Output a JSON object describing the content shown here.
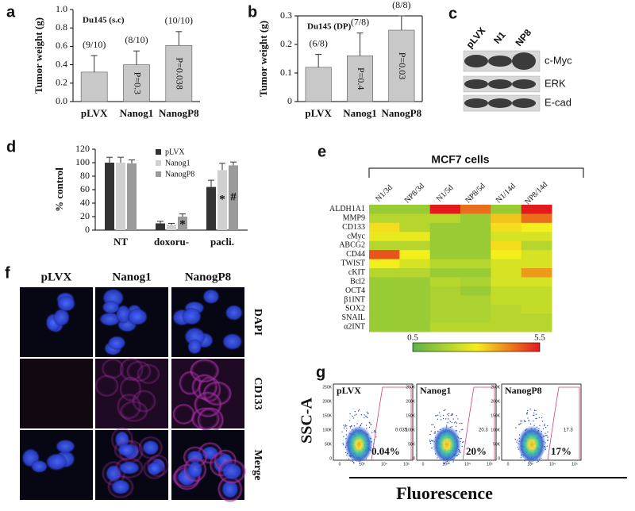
{
  "chart_data": [
    {
      "type": "bar",
      "panel": "a",
      "title": "Du145 (s.c)",
      "y_label": "Tumor weight (g)",
      "categories": [
        "pLVX",
        "Nanog1",
        "NanogP8"
      ],
      "values": [
        0.32,
        0.4,
        0.61
      ],
      "errors": [
        0.18,
        0.15,
        0.15
      ],
      "color": "#c8c8c8",
      "counts": [
        "(9/10)",
        "(8/10)",
        "(10/10)"
      ],
      "p_values": [
        null,
        "P=0.3",
        "P=0.038"
      ],
      "ylim": [
        0,
        1
      ],
      "yticks": [
        {
          "value": 0,
          "label": "0.0"
        },
        0.2,
        0.4,
        0.6,
        0.8,
        {
          "value": 1,
          "label": "1.0"
        }
      ]
    },
    {
      "type": "bar",
      "panel": "b",
      "title": "Du145 (DP)",
      "y_label": "Tumor weight (g)",
      "categories": [
        "pLVX",
        "Nanog1",
        "NanogP8"
      ],
      "values": [
        0.12,
        0.16,
        0.25
      ],
      "errors": [
        0.045,
        0.08,
        0.05
      ],
      "color": "#c8c8c8",
      "counts": [
        "(6/8)",
        "(7/8)",
        "(8/8)"
      ],
      "p_values": [
        null,
        "P=0.4",
        "P=0.03"
      ],
      "ylim": [
        0,
        0.3
      ],
      "yticks": [
        0,
        0.1,
        0.2,
        0.3
      ]
    },
    {
      "type": "grouped_bar",
      "panel": "d",
      "y_label": "% control",
      "categories": [
        "NT",
        "doxoru-",
        "pacli."
      ],
      "series": [
        {
          "name": "pLVX",
          "color": "#333333",
          "values": [
            100,
            10,
            64
          ],
          "errors": [
            8,
            3,
            10
          ],
          "markers": [
            null,
            null,
            null
          ]
        },
        {
          "name": "Nanog1",
          "color": "#d0d0d0",
          "values": [
            100,
            8,
            89
          ],
          "errors": [
            8,
            2,
            10
          ],
          "markers": [
            null,
            null,
            "*"
          ]
        },
        {
          "name": "NanogP8",
          "color": "#9a9a9a",
          "values": [
            99,
            20,
            96
          ],
          "errors": [
            5,
            4,
            5
          ],
          "markers": [
            null,
            "*",
            "#"
          ]
        }
      ],
      "ylim": [
        0,
        120
      ],
      "yticks": [
        0,
        20,
        40,
        60,
        80,
        100,
        120
      ]
    },
    {
      "type": "heatmap",
      "panel": "e",
      "title": "MCF7 cells",
      "columns": [
        "N1/3d",
        "NP8/3d",
        "N1/5d",
        "NP8/5d",
        "N1/14d",
        "NP8/14d"
      ],
      "rows": [
        "ALDH1A1",
        "MMP9",
        "CD133",
        "cMyc",
        "ABCG2",
        "CD44",
        "TWIST",
        "cKIT",
        "Bcl2",
        "OCT4",
        "β1INT",
        "SOX2",
        "SNAIL",
        "α2INT"
      ],
      "values": [
        [
          1.5,
          1.5,
          5.5,
          4.5,
          1.5,
          5.5
        ],
        [
          2,
          2,
          2,
          1.5,
          3.5,
          4.5
        ],
        [
          3.2,
          2,
          1.5,
          1.5,
          3.2,
          3
        ],
        [
          2.8,
          2.8,
          1.5,
          1.5,
          2.5,
          2.5
        ],
        [
          2,
          2,
          1.5,
          1.5,
          3.2,
          2
        ],
        [
          4.8,
          3,
          1.5,
          1.5,
          3,
          2.5
        ],
        [
          3,
          2.5,
          2,
          2,
          2.5,
          2.5
        ],
        [
          2,
          2,
          1.5,
          1.5,
          2.5,
          4
        ],
        [
          1.5,
          1.5,
          2,
          1.8,
          2.5,
          2.5
        ],
        [
          1.5,
          1.5,
          1.8,
          1.5,
          2.2,
          2.2
        ],
        [
          1.5,
          1.5,
          1.8,
          1.8,
          2.2,
          2.2
        ],
        [
          1.5,
          1.5,
          1.8,
          1.8,
          2,
          2.2
        ],
        [
          1.5,
          1.5,
          1.8,
          1.8,
          2,
          2
        ],
        [
          1.5,
          1.5,
          2,
          2,
          2,
          2
        ]
      ],
      "clim": [
        0.5,
        5.5
      ],
      "colors": [
        "#5cb346",
        "#f4ee1c",
        "#e31a1c"
      ]
    }
  ],
  "blot": {
    "panel": "c",
    "lanes": [
      "pLVX",
      "N1",
      "NP8"
    ],
    "bands": [
      "c-Myc",
      "ERK",
      "E-cad"
    ]
  },
  "microscopy": {
    "panel": "f",
    "columns": [
      "pLVX",
      "Nanog1",
      "NanogP8"
    ],
    "rows": [
      "DAPI",
      "CD133",
      "Merge"
    ]
  },
  "flow": {
    "panel": "g",
    "y_label": "SSC-A",
    "x_label": "Fluorescence",
    "yticks": [
      "250K",
      "200K",
      "150K",
      "100K",
      "50K",
      "0"
    ],
    "xticks": [
      "0",
      "10³",
      "10⁴",
      "10⁵"
    ],
    "plots": [
      {
        "name": "pLVX",
        "gate_value": "0.035",
        "percent": "0.04%"
      },
      {
        "name": "Nanog1",
        "gate_value": "20.3",
        "percent": "20%"
      },
      {
        "name": "NanogP8",
        "gate_value": "17.3",
        "percent": "17%"
      }
    ]
  }
}
